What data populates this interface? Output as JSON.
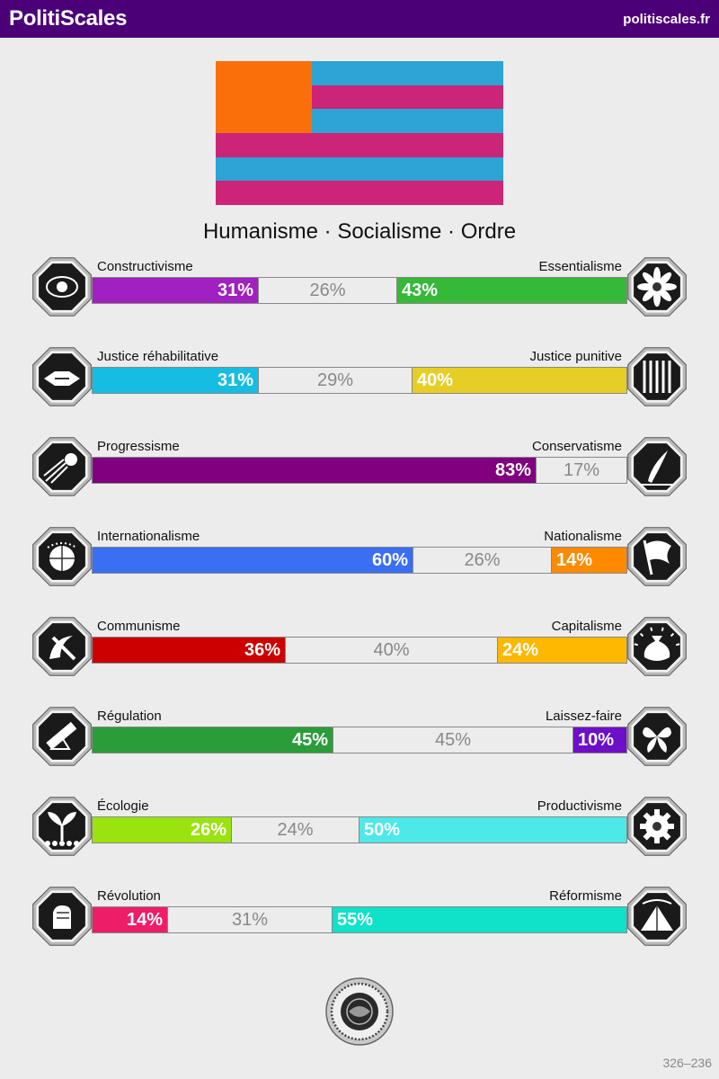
{
  "header": {
    "brand": "PolitiScales",
    "site": "politiscales.fr"
  },
  "flag": {
    "canton_color": "#fa6f0a",
    "stripe_colors": [
      "#2ea3d5",
      "#cc2476",
      "#2ea3d5",
      "#cc2476",
      "#2ea3d5",
      "#cc2476"
    ]
  },
  "ideology": "Humanisme · Socialisme · Ordre",
  "axes": [
    {
      "left_label": "Constructivisme",
      "right_label": "Essentialisme",
      "left_pct": 31,
      "mid_pct": 26,
      "right_pct": 43,
      "left_text": "31%",
      "mid_text": "26%",
      "right_text": "43%",
      "left_color": "#a020c0",
      "right_color": "#36b838",
      "left_icon": "eye-icon",
      "right_icon": "flower-icon"
    },
    {
      "left_label": "Justice réhabilitative",
      "right_label": "Justice punitive",
      "left_pct": 31,
      "mid_pct": 29,
      "right_pct": 40,
      "left_text": "31%",
      "mid_text": "29%",
      "right_text": "40%",
      "left_color": "#15bde3",
      "right_color": "#e6ce27",
      "left_icon": "handshake-icon",
      "right_icon": "prison-bars-icon"
    },
    {
      "left_label": "Progressisme",
      "right_label": "Conservatisme",
      "left_pct": 83,
      "mid_pct": 17,
      "right_pct": 0,
      "left_text": "83%",
      "mid_text": "17%",
      "right_text": "",
      "left_color": "#80007f",
      "right_color": "#f2c200",
      "left_icon": "comet-icon",
      "right_icon": "quill-icon"
    },
    {
      "left_label": "Internationalisme",
      "right_label": "Nationalisme",
      "left_pct": 60,
      "mid_pct": 26,
      "right_pct": 14,
      "left_text": "60%",
      "mid_text": "26%",
      "right_text": "14%",
      "left_color": "#3a6ef3",
      "right_color": "#ff8a00",
      "left_icon": "globe-icon",
      "right_icon": "flag-icon"
    },
    {
      "left_label": "Communisme",
      "right_label": "Capitalisme",
      "left_pct": 36,
      "mid_pct": 40,
      "right_pct": 24,
      "left_text": "36%",
      "mid_text": "40%",
      "right_text": "24%",
      "left_color": "#cc0000",
      "right_color": "#ffb800",
      "left_icon": "hammer-sickle-icon",
      "right_icon": "money-bag-icon"
    },
    {
      "left_label": "Régulation",
      "right_label": "Laissez-faire",
      "left_pct": 45,
      "mid_pct": 45,
      "right_pct": 10,
      "left_text": "45%",
      "mid_text": "45%",
      "right_text": "10%",
      "left_color": "#2a9d3a",
      "right_color": "#6d0fc7",
      "left_icon": "ruler-icon",
      "right_icon": "butterfly-icon"
    },
    {
      "left_label": "Écologie",
      "right_label": "Productivisme",
      "left_pct": 26,
      "mid_pct": 24,
      "right_pct": 50,
      "left_text": "26%",
      "mid_text": "24%",
      "right_text": "50%",
      "left_color": "#9ae30e",
      "right_color": "#4de8e8",
      "left_icon": "sprout-icon",
      "right_icon": "gear-icon"
    },
    {
      "left_label": "Révolution",
      "right_label": "Réformisme",
      "left_pct": 14,
      "mid_pct": 31,
      "right_pct": 55,
      "left_text": "14%",
      "mid_text": "31%",
      "right_text": "55%",
      "left_color": "#ee1d68",
      "right_color": "#0ee2c9",
      "left_icon": "fist-icon",
      "right_icon": "tent-icon"
    }
  ],
  "seal": {
    "icon": "seal-icon"
  },
  "footer": "326–236"
}
